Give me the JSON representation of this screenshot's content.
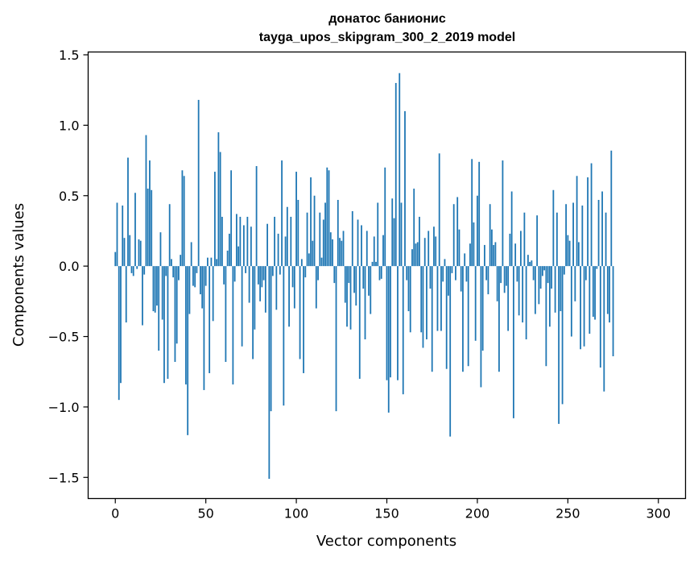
{
  "chart_data": {
    "type": "bar",
    "title": "донатос банионис",
    "subtitle": "tayga_upos_skipgram_300_2_2019 model",
    "xlabel": "Vector components",
    "ylabel": "Components values",
    "xlim": [
      -15,
      315
    ],
    "ylim": [
      -1.65,
      1.52
    ],
    "xticks": [
      0,
      50,
      100,
      150,
      200,
      250,
      300
    ],
    "yticks": [
      -1.5,
      -1.0,
      -0.5,
      0.0,
      0.5,
      1.0,
      1.5
    ],
    "xtick_labels": [
      "0",
      "50",
      "100",
      "150",
      "200",
      "250",
      "300"
    ],
    "ytick_labels": [
      "−1.5",
      "−1.0",
      "−0.5",
      "0.0",
      "0.5",
      "1.0",
      "1.5"
    ],
    "grid": false,
    "bar_color": "#1f77b4",
    "values": [
      0.1,
      0.45,
      -0.95,
      -0.83,
      0.43,
      0.2,
      -0.4,
      0.77,
      0.22,
      -0.05,
      -0.07,
      0.52,
      -0.02,
      0.19,
      0.18,
      -0.42,
      -0.06,
      0.93,
      0.55,
      0.75,
      0.54,
      -0.32,
      -0.33,
      -0.28,
      -0.6,
      0.24,
      -0.38,
      -0.83,
      -0.07,
      -0.8,
      0.44,
      0.05,
      -0.08,
      -0.68,
      -0.55,
      -0.1,
      0.08,
      0.68,
      0.64,
      -0.84,
      -1.2,
      -0.34,
      0.17,
      -0.14,
      -0.15,
      -0.05,
      1.18,
      -0.2,
      -0.3,
      -0.88,
      -0.14,
      0.06,
      -0.76,
      0.06,
      -0.39,
      0.67,
      0.05,
      0.95,
      0.81,
      0.35,
      -0.13,
      -0.68,
      0.11,
      0.23,
      0.68,
      -0.84,
      -0.11,
      0.37,
      0.14,
      0.35,
      -0.57,
      0.29,
      -0.05,
      0.35,
      -0.26,
      0.28,
      -0.66,
      -0.45,
      0.71,
      -0.13,
      -0.25,
      -0.15,
      -0.1,
      -0.33,
      0.3,
      -1.51,
      -1.03,
      -0.07,
      0.35,
      -0.31,
      0.23,
      -0.06,
      0.75,
      -0.99,
      0.21,
      0.42,
      -0.43,
      0.35,
      -0.15,
      -0.3,
      0.67,
      0.47,
      -0.66,
      0.05,
      -0.76,
      -0.08,
      0.38,
      0.09,
      0.63,
      0.18,
      0.5,
      -0.3,
      -0.1,
      0.38,
      0.06,
      0.33,
      0.45,
      0.7,
      0.68,
      0.24,
      0.19,
      -0.12,
      -1.03,
      0.47,
      0.2,
      0.18,
      0.25,
      -0.26,
      -0.43,
      -0.12,
      -0.45,
      0.39,
      -0.19,
      -0.28,
      0.33,
      -0.8,
      0.29,
      -0.16,
      -0.52,
      0.25,
      -0.21,
      -0.34,
      0.03,
      0.21,
      0.03,
      0.45,
      -0.1,
      -0.09,
      0.22,
      0.7,
      -0.81,
      -1.04,
      -0.79,
      0.48,
      0.34,
      1.3,
      -0.81,
      1.37,
      0.45,
      -0.91,
      1.1,
      -0.1,
      -0.32,
      -0.47,
      0.12,
      0.55,
      0.16,
      0.17,
      0.35,
      -0.47,
      -0.58,
      0.2,
      -0.52,
      0.25,
      -0.16,
      -0.75,
      0.28,
      0.21,
      -0.46,
      0.8,
      -0.46,
      -0.11,
      0.05,
      -0.73,
      -0.21,
      -1.21,
      -0.05,
      0.44,
      -0.1,
      0.49,
      0.26,
      -0.18,
      -0.75,
      0.09,
      -0.11,
      -0.71,
      0.16,
      0.76,
      0.31,
      -0.53,
      0.5,
      0.74,
      -0.86,
      -0.6,
      0.15,
      -0.1,
      -0.2,
      0.44,
      0.26,
      0.15,
      0.17,
      -0.25,
      -0.75,
      -0.12,
      0.75,
      -0.19,
      -0.14,
      -0.46,
      0.23,
      0.53,
      -1.08,
      0.16,
      -0.11,
      -0.35,
      0.25,
      -0.4,
      0.38,
      -0.52,
      0.08,
      0.03,
      0.04,
      -0.1,
      -0.34,
      0.36,
      -0.27,
      -0.16,
      -0.07,
      -0.03,
      -0.71,
      -0.12,
      -0.43,
      -0.16,
      0.54,
      -0.33,
      0.38,
      -1.12,
      -0.32,
      -0.98,
      -0.06,
      0.44,
      0.22,
      0.18,
      -0.5,
      0.45,
      -0.25,
      0.64,
      0.17,
      -0.59,
      0.43,
      -0.57,
      -0.1,
      0.63,
      -0.48,
      0.73,
      -0.36,
      -0.38,
      -0.02,
      0.47,
      -0.72,
      0.53,
      -0.89,
      0.38,
      -0.34,
      -0.4,
      0.82,
      -0.64
    ]
  }
}
